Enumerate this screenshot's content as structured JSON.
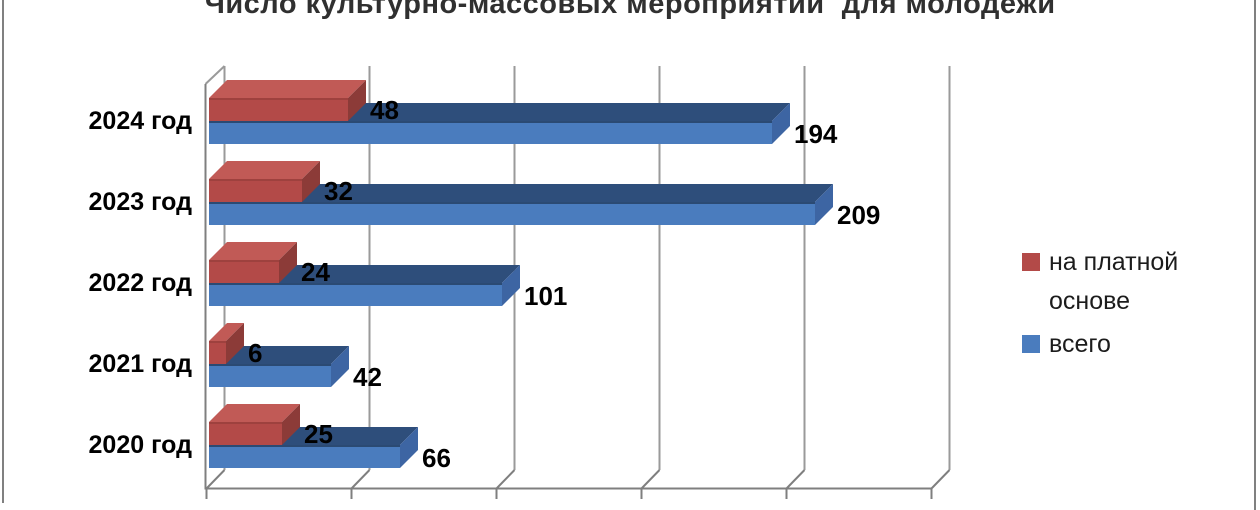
{
  "chart_data": {
    "type": "bar",
    "orientation": "horizontal",
    "style": "3d",
    "title": "Число культурно-массовых мероприятий  для молодежи",
    "categories": [
      "2024 год",
      "2023 год",
      "2022 год",
      "2021 год",
      "2020 год"
    ],
    "series": [
      {
        "name": "на платной основе",
        "color": "#B34A48",
        "color_top": "#C15A56",
        "color_side": "#8C3B38",
        "edge": "#9E413E",
        "values": [
          48,
          32,
          24,
          6,
          25
        ]
      },
      {
        "name": "всего",
        "color": "#4A7CBE",
        "color_top": "#2E4E7B",
        "color_side": "#3D65A3",
        "edge": "#2B4A73",
        "values": [
          194,
          209,
          101,
          42,
          66
        ]
      }
    ],
    "value_axis": {
      "min": 0,
      "max": 250,
      "gridline_step": 50,
      "gridlines_visible": true,
      "tick_labels_visible": false
    },
    "data_labels": true,
    "legend": {
      "position": "right",
      "entries": [
        "на платной основе",
        "всего"
      ]
    }
  },
  "colors": {
    "gridline": "#9A9A9A",
    "axis": "#7F7F7F",
    "frame": "#808080",
    "title": "#303030",
    "label": "#000000",
    "background": "#FFFFFF"
  }
}
